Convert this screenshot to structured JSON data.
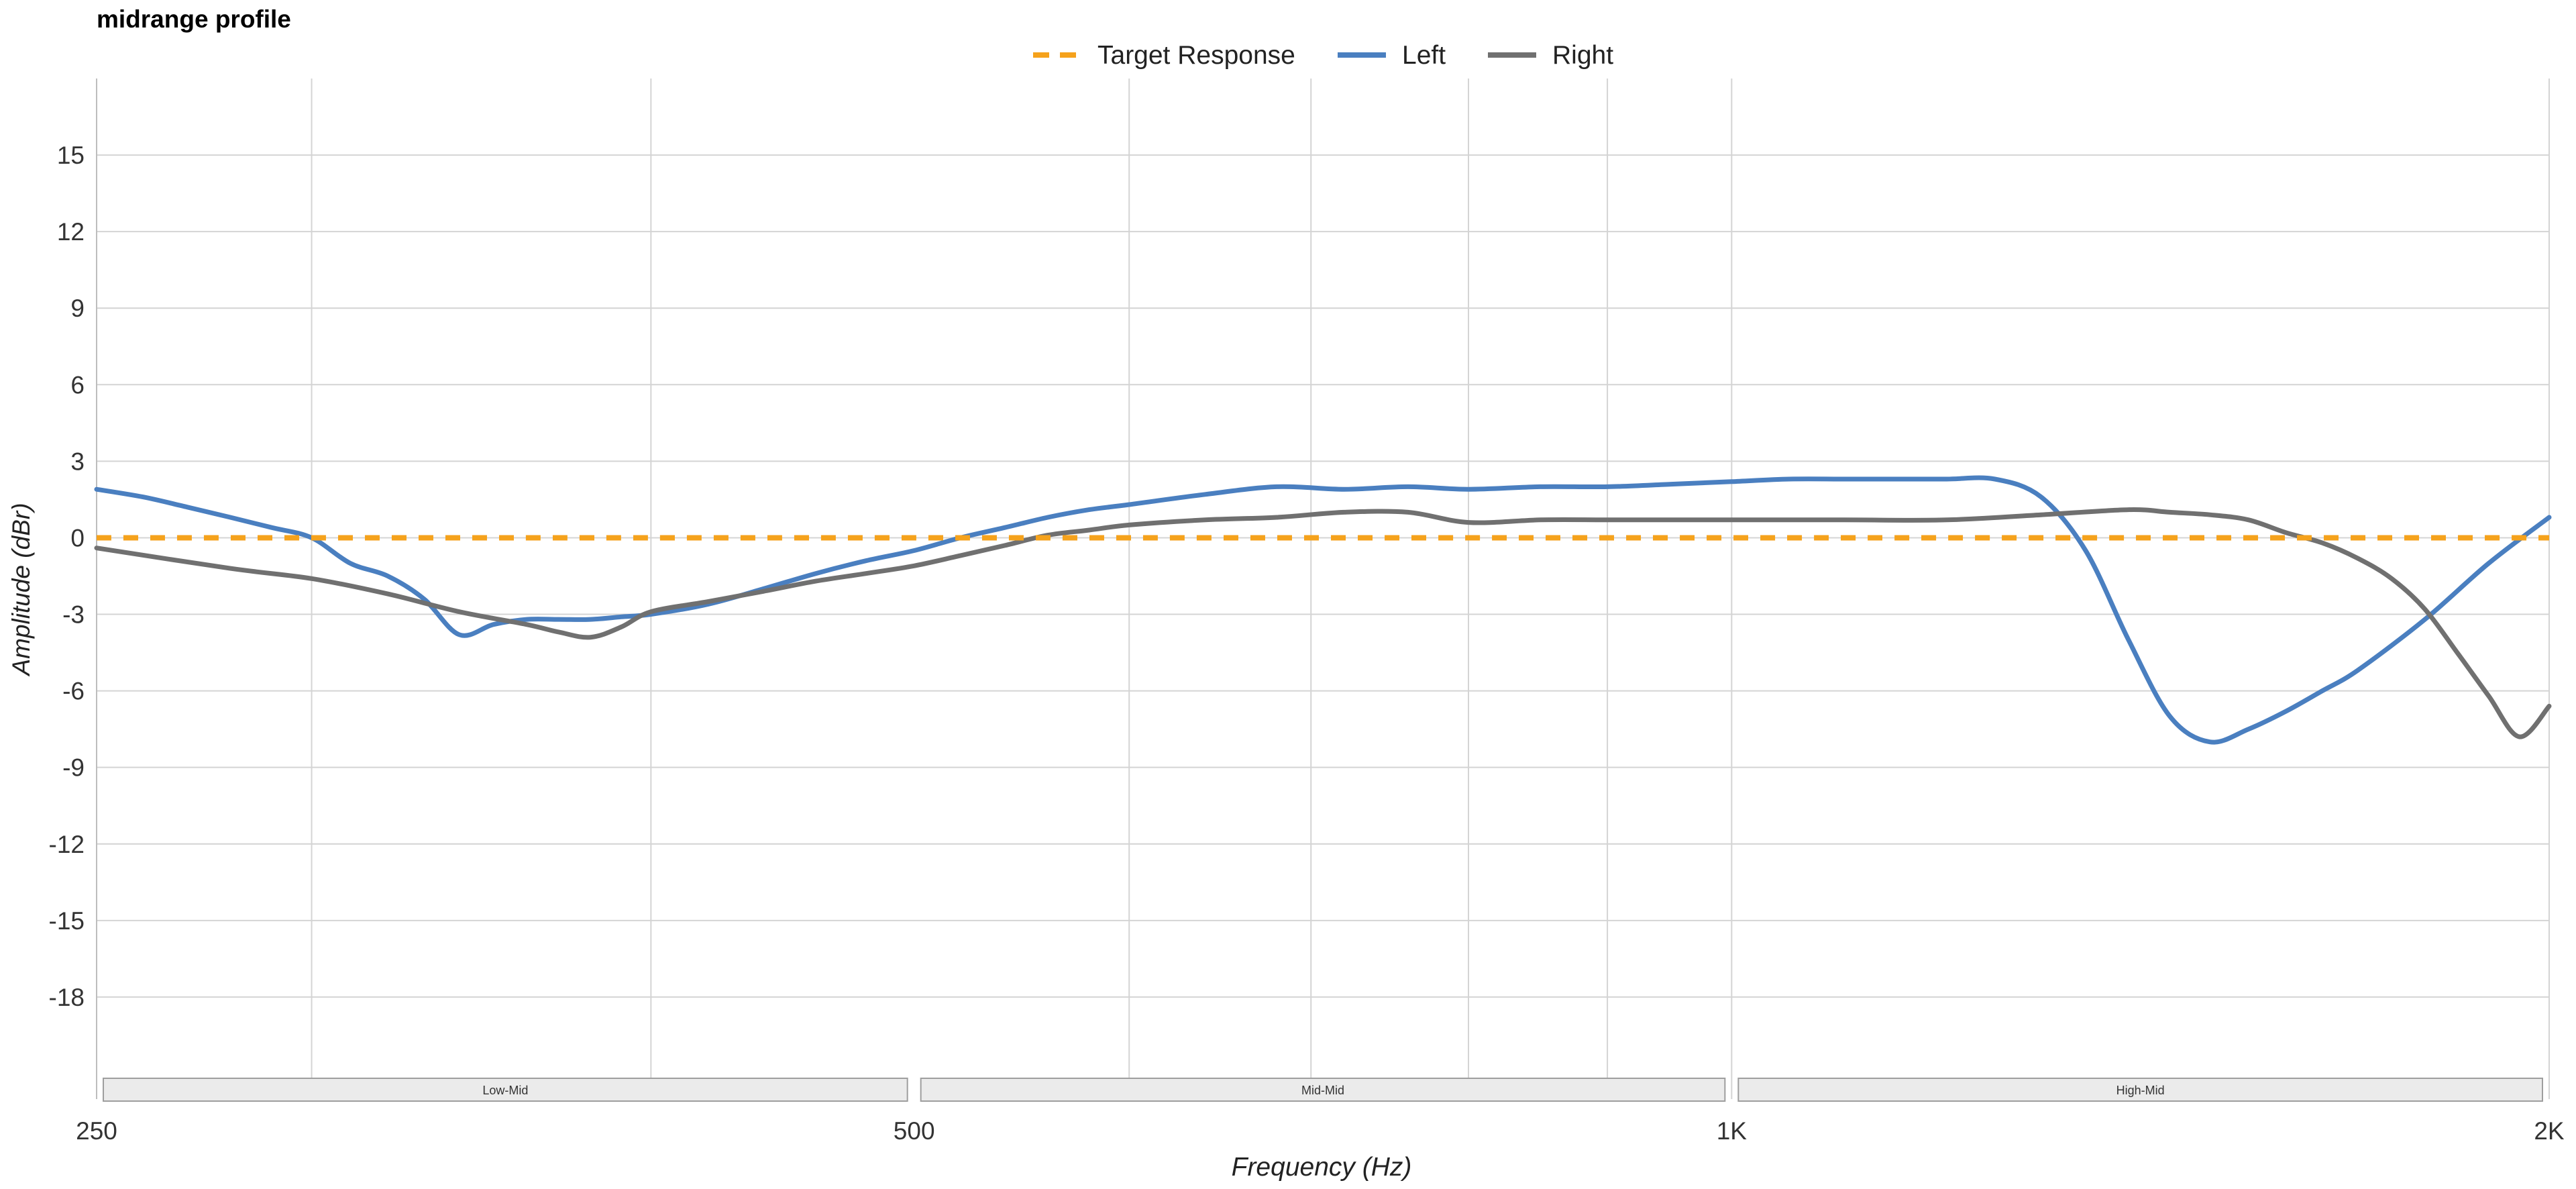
{
  "chart_data": {
    "type": "line",
    "title": "midrange profile",
    "xlabel": "Frequency (Hz)",
    "ylabel": "Amplitude (dBr)",
    "x_scale": "log",
    "xlim": [
      250,
      2000
    ],
    "ylim": [
      -22,
      18
    ],
    "x_ticks": [
      {
        "value": 250,
        "label": "250"
      },
      {
        "value": 500,
        "label": "500"
      },
      {
        "value": 1000,
        "label": "1K"
      },
      {
        "value": 2000,
        "label": "2K"
      }
    ],
    "x_gridlines": [
      300,
      400,
      600,
      700,
      800,
      900,
      1000,
      2000
    ],
    "y_ticks": [
      15,
      12,
      9,
      6,
      3,
      0,
      -3,
      -6,
      -9,
      -12,
      -15,
      -18
    ],
    "grid": true,
    "legend_position": "top-center",
    "bands": [
      {
        "label": "Low-Mid",
        "from": 250,
        "to": 500
      },
      {
        "label": "Mid-Mid",
        "from": 500,
        "to": 1000
      },
      {
        "label": "High-Mid",
        "from": 1000,
        "to": 2000
      }
    ],
    "series": [
      {
        "name": "Target Response",
        "style": "dashed",
        "color": "#f5a21c",
        "x": [
          250,
          2000
        ],
        "y": [
          0,
          0
        ]
      },
      {
        "name": "Left",
        "style": "solid",
        "color": "#4a7fc0",
        "x": [
          250,
          260,
          270,
          280,
          290,
          300,
          310,
          320,
          330,
          340,
          350,
          360,
          370,
          380,
          390,
          400,
          420,
          440,
          460,
          480,
          500,
          520,
          540,
          560,
          580,
          600,
          640,
          680,
          720,
          760,
          800,
          850,
          900,
          950,
          1000,
          1050,
          1100,
          1150,
          1200,
          1250,
          1300,
          1350,
          1400,
          1450,
          1500,
          1550,
          1600,
          1650,
          1700,
          1800,
          1900,
          2000
        ],
        "y": [
          1.9,
          1.6,
          1.2,
          0.8,
          0.4,
          0.0,
          -1.0,
          -1.5,
          -2.4,
          -3.8,
          -3.4,
          -3.2,
          -3.2,
          -3.2,
          -3.1,
          -3.0,
          -2.6,
          -2.0,
          -1.4,
          -0.9,
          -0.5,
          0.0,
          0.4,
          0.8,
          1.1,
          1.3,
          1.7,
          2.0,
          1.9,
          2.0,
          1.9,
          2.0,
          2.0,
          2.1,
          2.2,
          2.3,
          2.3,
          2.3,
          2.3,
          2.3,
          1.6,
          -0.5,
          -4.0,
          -7.0,
          -8.0,
          -7.5,
          -6.8,
          -6.0,
          -5.2,
          -3.2,
          -1.0,
          0.8
        ]
      },
      {
        "name": "Right",
        "style": "solid",
        "color": "#707070",
        "x": [
          250,
          280,
          300,
          320,
          340,
          360,
          370,
          380,
          390,
          400,
          420,
          440,
          460,
          480,
          500,
          520,
          540,
          560,
          580,
          600,
          640,
          680,
          720,
          760,
          800,
          850,
          900,
          950,
          1000,
          1100,
          1200,
          1300,
          1400,
          1450,
          1500,
          1550,
          1600,
          1650,
          1700,
          1750,
          1800,
          1850,
          1900,
          1950,
          2000
        ],
        "y": [
          -0.4,
          -1.2,
          -1.6,
          -2.2,
          -2.9,
          -3.4,
          -3.7,
          -3.9,
          -3.5,
          -2.9,
          -2.5,
          -2.1,
          -1.7,
          -1.4,
          -1.1,
          -0.7,
          -0.3,
          0.1,
          0.3,
          0.5,
          0.7,
          0.8,
          1.0,
          1.0,
          0.6,
          0.7,
          0.7,
          0.7,
          0.7,
          0.7,
          0.7,
          0.9,
          1.1,
          1.0,
          0.9,
          0.7,
          0.2,
          -0.2,
          -0.8,
          -1.6,
          -2.8,
          -4.5,
          -6.2,
          -7.8,
          -6.6
        ]
      }
    ]
  }
}
